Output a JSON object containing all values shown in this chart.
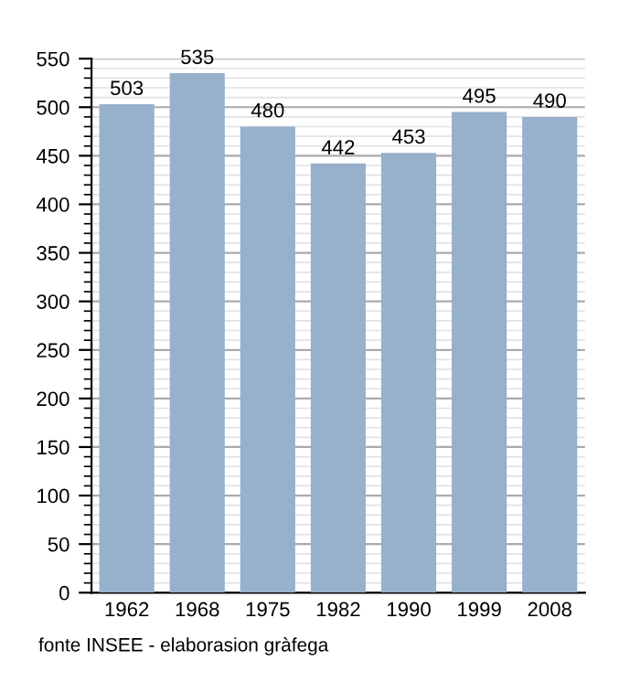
{
  "chart_data": {
    "type": "bar",
    "categories": [
      "1962",
      "1968",
      "1975",
      "1982",
      "1990",
      "1999",
      "2008"
    ],
    "values": [
      503,
      535,
      480,
      442,
      453,
      495,
      490
    ],
    "color": "#97b0cb",
    "data_labels": true,
    "ylim": [
      0,
      550
    ],
    "yticks": [
      0,
      {
        "value": 10,
        "label": null
      },
      {
        "value": 20,
        "label": null
      },
      {
        "value": 30,
        "label": null
      },
      {
        "value": 40,
        "label": null
      },
      50,
      {
        "value": 60,
        "label": null
      },
      {
        "value": 70,
        "label": null
      },
      {
        "value": 80,
        "label": null
      },
      {
        "value": 90,
        "label": null
      },
      100,
      {
        "value": 110,
        "label": null
      },
      {
        "value": 120,
        "label": null
      },
      {
        "value": 130,
        "label": null
      },
      {
        "value": 140,
        "label": null
      },
      150,
      {
        "value": 160,
        "label": null
      },
      {
        "value": 170,
        "label": null
      },
      {
        "value": 180,
        "label": null
      },
      {
        "value": 190,
        "label": null
      },
      200,
      {
        "value": 210,
        "label": null
      },
      {
        "value": 220,
        "label": null
      },
      {
        "value": 230,
        "label": null
      },
      {
        "value": 240,
        "label": null
      },
      250,
      {
        "value": 260,
        "label": null
      },
      {
        "value": 270,
        "label": null
      },
      {
        "value": 280,
        "label": null
      },
      {
        "value": 290,
        "label": null
      },
      300,
      {
        "value": 310,
        "label": null
      },
      {
        "value": 320,
        "label": null
      },
      {
        "value": 330,
        "label": null
      },
      {
        "value": 340,
        "label": null
      },
      350,
      {
        "value": 360,
        "label": null
      },
      {
        "value": 370,
        "label": null
      },
      {
        "value": 380,
        "label": null
      },
      {
        "value": 390,
        "label": null
      },
      400,
      {
        "value": 410,
        "label": null
      },
      {
        "value": 420,
        "label": null
      },
      {
        "value": 430,
        "label": null
      },
      {
        "value": 440,
        "label": null
      },
      450,
      {
        "value": 460,
        "label": null
      },
      {
        "value": 470,
        "label": null
      },
      {
        "value": 480,
        "label": null
      },
      {
        "value": 490,
        "label": null
      },
      500,
      {
        "value": 510,
        "label": null
      },
      {
        "value": 520,
        "label": null
      },
      {
        "value": 530,
        "label": null
      },
      {
        "value": 540,
        "label": null
      },
      550
    ],
    "grid": "y",
    "annotations": [
      "fonte INSEE - elaborasion gràfega"
    ]
  }
}
